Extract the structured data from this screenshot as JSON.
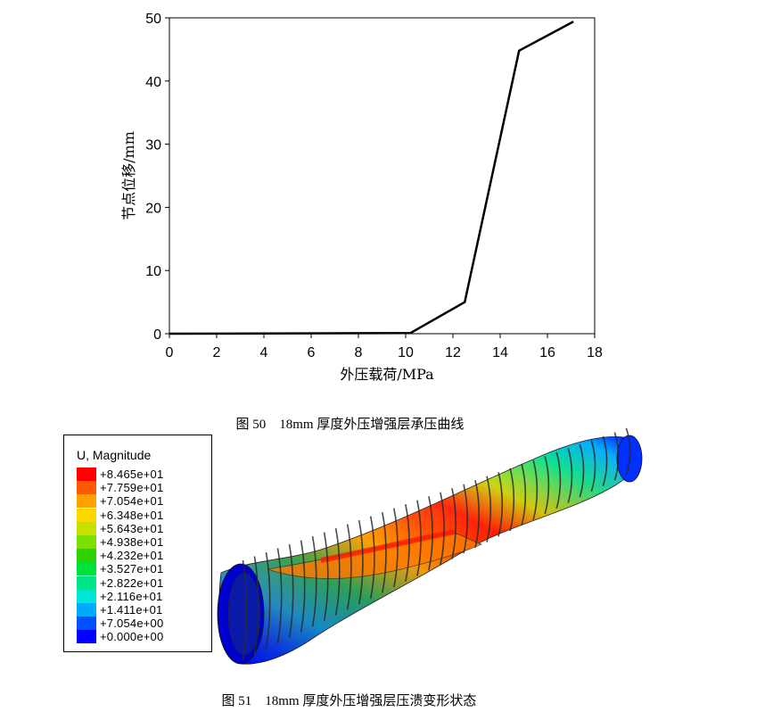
{
  "figure50": {
    "caption_number": "图 50",
    "caption_text": "18mm 厚度外压增强层承压曲线"
  },
  "chart_data": {
    "type": "line",
    "title": "",
    "xlabel": "外压载荷/MPa",
    "ylabel": "节点位移/mm",
    "xlim": [
      0,
      18
    ],
    "ylim": [
      0,
      50
    ],
    "xticks": [
      0,
      2,
      4,
      6,
      8,
      10,
      12,
      14,
      16,
      18
    ],
    "yticks": [
      0,
      10,
      20,
      30,
      40,
      50
    ],
    "grid": false,
    "series": [
      {
        "color": "#000000",
        "x": [
          0,
          10.2,
          12.5,
          14.8,
          17.1
        ],
        "y": [
          0,
          0.1,
          5.0,
          44.8,
          49.4
        ]
      }
    ]
  },
  "figure51": {
    "caption_number": "图 51",
    "caption_text": "18mm 厚度外压增强层压溃变形状态"
  },
  "legend": {
    "title": "U, Magnitude",
    "entries": [
      {
        "label": "+8.465e+01",
        "color": "#ff0000"
      },
      {
        "label": "+7.759e+01",
        "color": "#ff5a00"
      },
      {
        "label": "+7.054e+01",
        "color": "#ff9f00"
      },
      {
        "label": "+6.348e+01",
        "color": "#ffd700"
      },
      {
        "label": "+5.643e+01",
        "color": "#c8e000"
      },
      {
        "label": "+4.938e+01",
        "color": "#7be000"
      },
      {
        "label": "+4.232e+01",
        "color": "#2ed200"
      },
      {
        "label": "+3.527e+01",
        "color": "#00e03a"
      },
      {
        "label": "+2.822e+01",
        "color": "#00e48c"
      },
      {
        "label": "+2.116e+01",
        "color": "#00e6d6"
      },
      {
        "label": "+1.411e+01",
        "color": "#00aaff"
      },
      {
        "label": "+7.054e+00",
        "color": "#0050ff"
      },
      {
        "label": "+0.000e+00",
        "color": "#0000ff"
      }
    ]
  }
}
